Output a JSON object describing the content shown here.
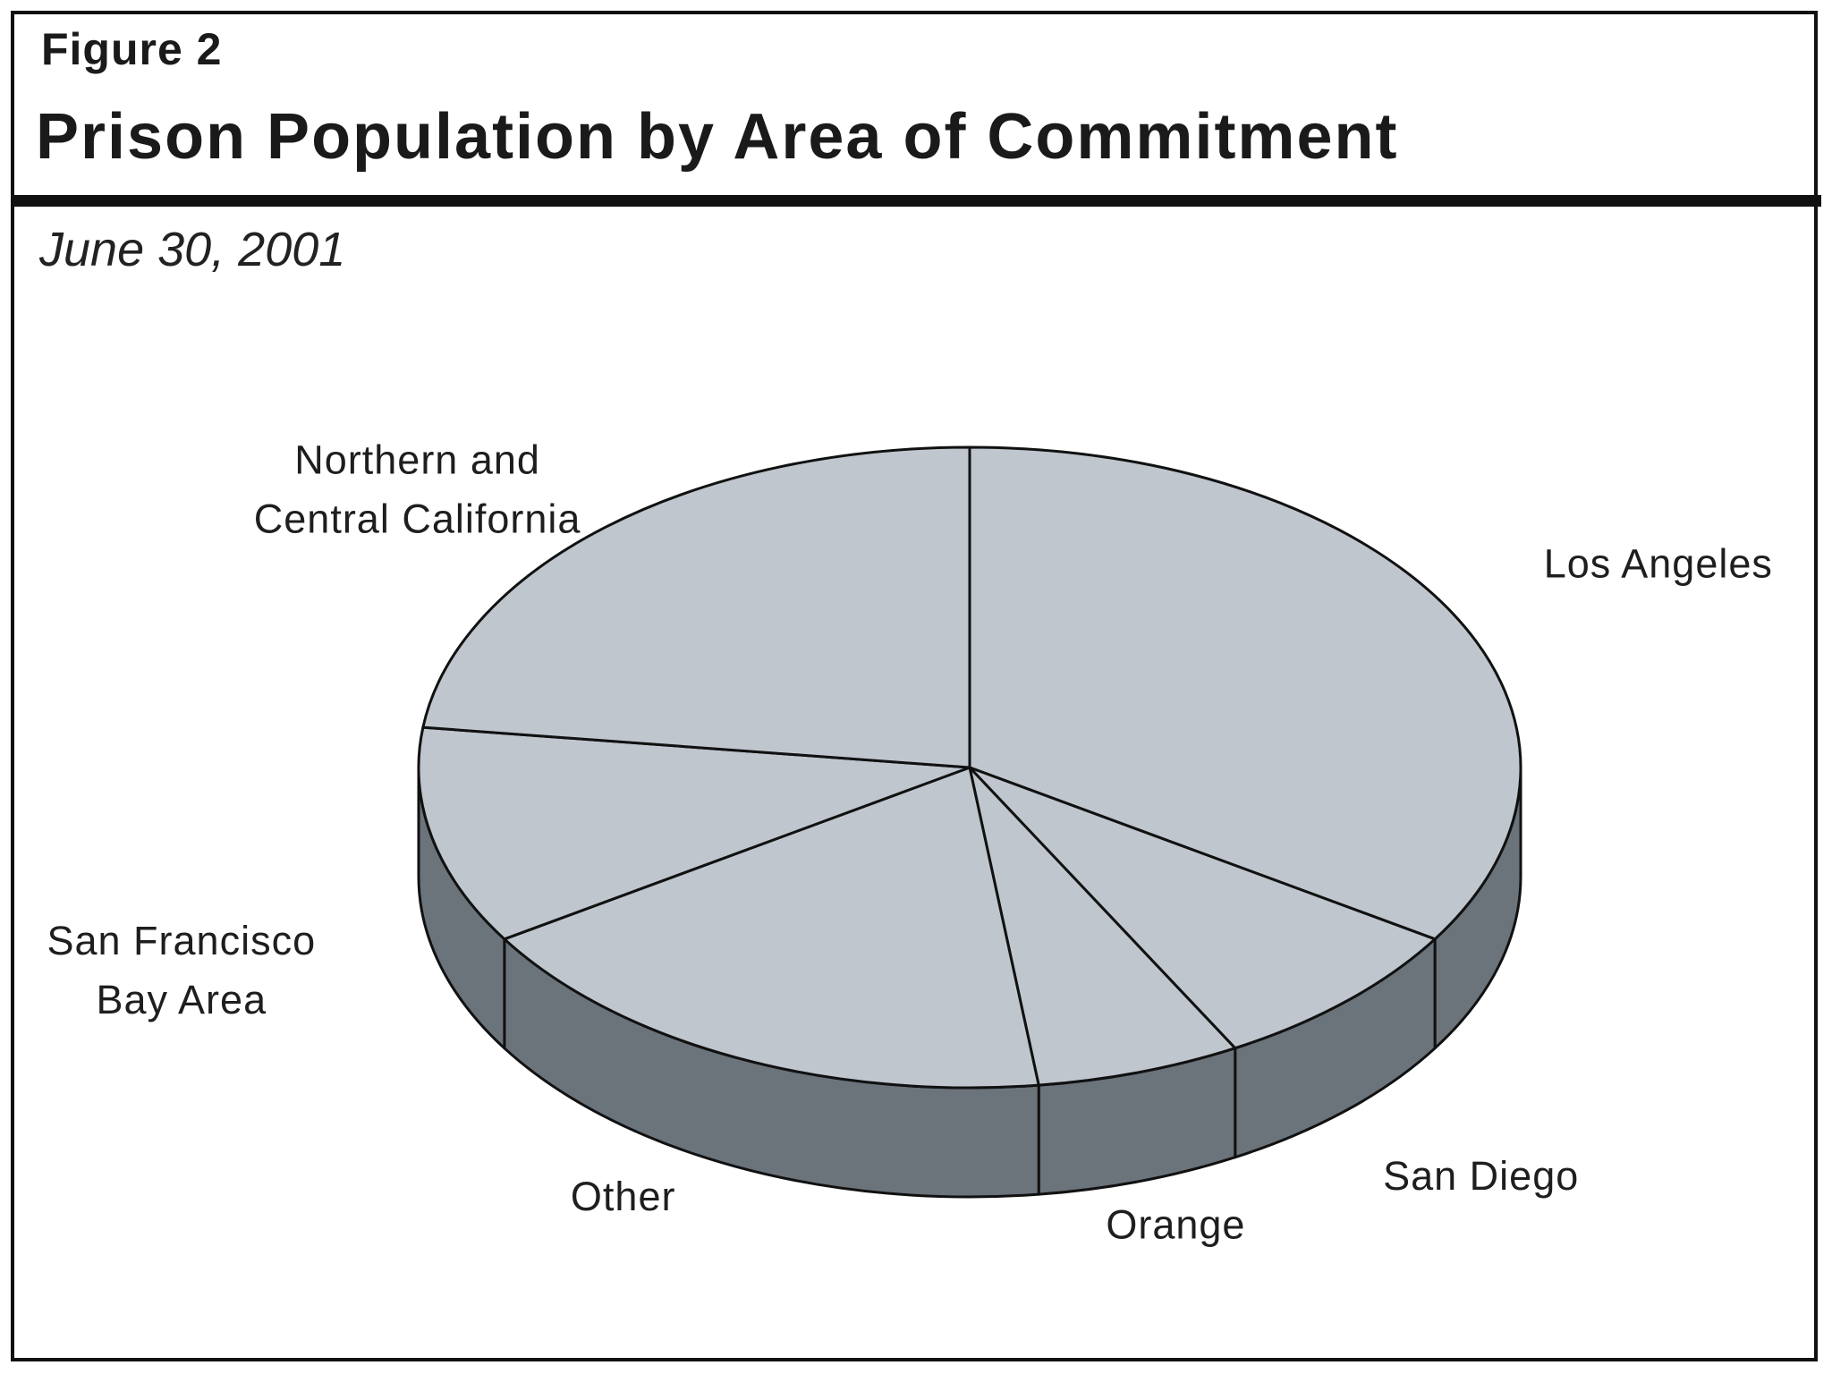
{
  "figure": {
    "label": "Figure 2",
    "title": "Prison Population by Area of Commitment",
    "subtitle": "June 30, 2001"
  },
  "colors": {
    "top_face": "#bfc6ce",
    "side_face": "#6b737b",
    "stroke": "#111111",
    "text": "#1e1e1e"
  },
  "chart_data": {
    "type": "pie",
    "title": "Prison Population by Area of Commitment",
    "subtitle": "June 30, 2001",
    "unit": "percent of prison population (estimated from slice angles)",
    "slices": [
      {
        "name": "Los Angeles",
        "label_lines": [
          "Los Angeles"
        ],
        "value": 34
      },
      {
        "name": "San Diego",
        "label_lines": [
          "San Diego"
        ],
        "value": 8
      },
      {
        "name": "Orange",
        "label_lines": [
          "Orange"
        ],
        "value": 6
      },
      {
        "name": "Other",
        "label_lines": [
          "Other"
        ],
        "value": 18
      },
      {
        "name": "San Francisco Bay Area",
        "label_lines": [
          "San Francisco",
          "Bay Area"
        ],
        "value": 11
      },
      {
        "name": "Northern and Central California",
        "label_lines": [
          "Northern and",
          "Central California"
        ],
        "value": 23
      }
    ]
  }
}
